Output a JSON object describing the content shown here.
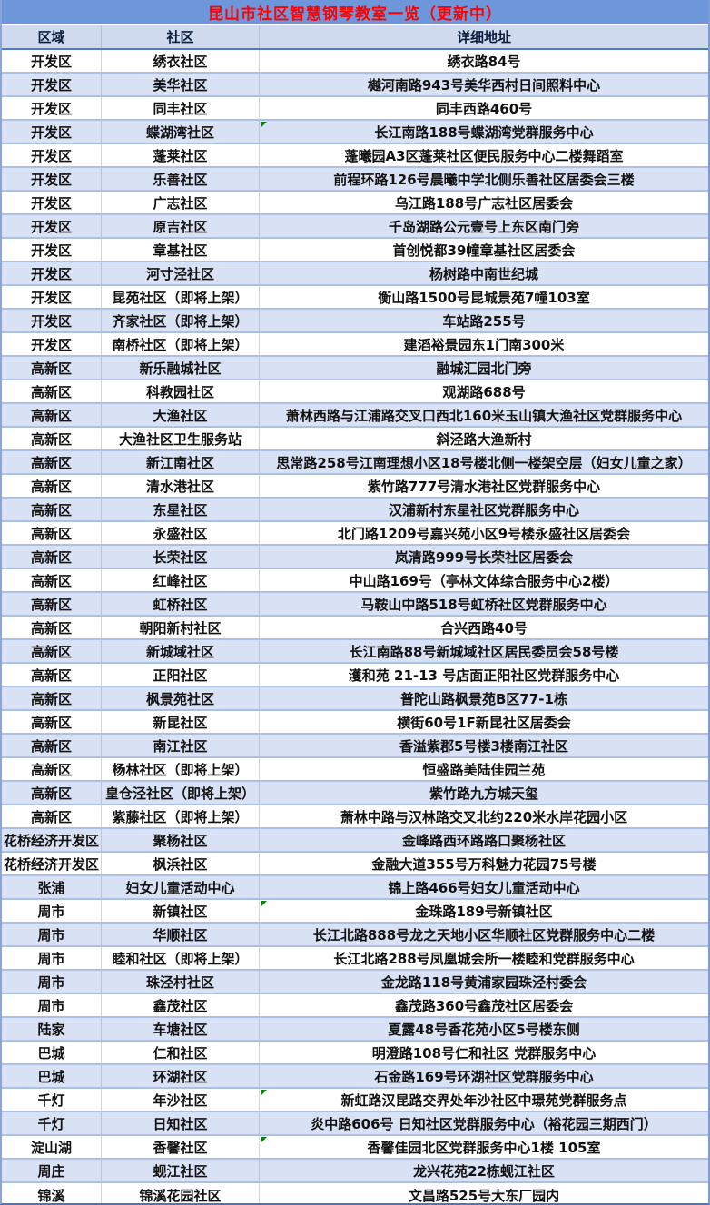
{
  "title": "昆山市社区智慧钢琴教室一览（更新中）",
  "columns": [
    "区域",
    "社区",
    "详细地址"
  ],
  "colors": {
    "title_bg": "#6d97da",
    "title_text": "#ff0000",
    "header_bg": "#cfdaef",
    "row_bg": "#ffffff",
    "row_alt_bg": "#d9e2f4",
    "row_border": "#adbfe5",
    "header_border": "#4e79c9",
    "comment_triangle": "#0f7e0f"
  },
  "rows": [
    {
      "region": "开发区",
      "community": "绣衣社区",
      "address": "绣衣路84号",
      "comment_marker": false
    },
    {
      "region": "开发区",
      "community": "美华社区",
      "address": "樾河南路943号美华西村日间照料中心",
      "comment_marker": false
    },
    {
      "region": "开发区",
      "community": "同丰社区",
      "address": "同丰西路460号",
      "comment_marker": false
    },
    {
      "region": "开发区",
      "community": "蝶湖湾社区",
      "address": "长江南路188号蝶湖湾党群服务中心",
      "comment_marker": true
    },
    {
      "region": "开发区",
      "community": "蓬莱社区",
      "address": "蓬曦园A3区蓬莱社区便民服务中心二楼舞蹈室",
      "comment_marker": false
    },
    {
      "region": "开发区",
      "community": "乐善社区",
      "address": "前程环路126号晨曦中学北侧乐善社区居委会三楼",
      "comment_marker": false
    },
    {
      "region": "开发区",
      "community": "广志社区",
      "address": "乌江路188号广志社区居委会",
      "comment_marker": false
    },
    {
      "region": "开发区",
      "community": "原吉社区",
      "address": "千岛湖路公元壹号上东区南门旁",
      "comment_marker": false
    },
    {
      "region": "开发区",
      "community": "章基社区",
      "address": "首创悦都39幢章基社区居委会",
      "comment_marker": false
    },
    {
      "region": "开发区",
      "community": "河寸泾社区",
      "address": "杨树路中南世纪城",
      "comment_marker": false
    },
    {
      "region": "开发区",
      "community": "昆苑社区（即将上架）",
      "address": "衡山路1500号昆城景苑7幢103室",
      "comment_marker": false
    },
    {
      "region": "开发区",
      "community": "齐家社区（即将上架）",
      "address": "车站路255号",
      "comment_marker": false
    },
    {
      "region": "开发区",
      "community": "南桥社区（即将上架）",
      "address": "建滔裕景园东1门南300米",
      "comment_marker": false
    },
    {
      "region": "高新区",
      "community": "新乐融城社区",
      "address": "融城汇园北门旁",
      "comment_marker": false
    },
    {
      "region": "高新区",
      "community": "科教园社区",
      "address": "观湖路688号",
      "comment_marker": false
    },
    {
      "region": "高新区",
      "community": "大渔社区",
      "address": "萧林西路与江浦路交叉口西北160米玉山镇大渔社区党群服务中心",
      "comment_marker": false
    },
    {
      "region": "高新区",
      "community": "大渔社区卫生服务站",
      "address": "斜泾路大渔新村",
      "comment_marker": false
    },
    {
      "region": "高新区",
      "community": "新江南社区",
      "address": "思常路258号江南理想小区18号楼北侧一楼架空层（妇女儿童之家）",
      "comment_marker": false
    },
    {
      "region": "高新区",
      "community": "清水港社区",
      "address": "紫竹路777号清水港社区党群服务中心",
      "comment_marker": false
    },
    {
      "region": "高新区",
      "community": "东星社区",
      "address": "汉浦新村东星社区党群服务中心",
      "comment_marker": false
    },
    {
      "region": "高新区",
      "community": "永盛社区",
      "address": "北门路1209号嘉兴苑小区9号楼永盛社区居委会",
      "comment_marker": false
    },
    {
      "region": "高新区",
      "community": "长荣社区",
      "address": "岚清路999号长荣社区居委会",
      "comment_marker": false
    },
    {
      "region": "高新区",
      "community": "红峰社区",
      "address": "中山路169号（亭林文体综合服务中心2楼）",
      "comment_marker": false
    },
    {
      "region": "高新区",
      "community": "虹桥社区",
      "address": "马鞍山中路518号虹桥社区党群服务中心",
      "comment_marker": false
    },
    {
      "region": "高新区",
      "community": "朝阳新村社区",
      "address": "合兴西路40号",
      "comment_marker": false
    },
    {
      "region": "高新区",
      "community": "新城域社区",
      "address": "长江南路88号新城域社区居民委员会58号楼",
      "comment_marker": false
    },
    {
      "region": "高新区",
      "community": "正阳社区",
      "address": "濩和苑 21-13 号店面正阳社区党群服务中心",
      "comment_marker": false
    },
    {
      "region": "高新区",
      "community": "枫景苑社区",
      "address": "普陀山路枫景苑B区77-1栋",
      "comment_marker": false
    },
    {
      "region": "高新区",
      "community": "新昆社区",
      "address": "横街60号1F新昆社区居委会",
      "comment_marker": false
    },
    {
      "region": "高新区",
      "community": "南江社区",
      "address": "香溢紫郡5号楼3楼南江社区",
      "comment_marker": false
    },
    {
      "region": "高新区",
      "community": "杨林社区（即将上架）",
      "address": "恒盛路美陆佳园兰苑",
      "comment_marker": false
    },
    {
      "region": "高新区",
      "community": "皇仓泾社区（即将上架）",
      "address": "紫竹路九方城天玺",
      "comment_marker": false
    },
    {
      "region": "高新区",
      "community": "紫藤社区（即将上架）",
      "address": "萧林中路与汉林路交叉北约220米水岸花园小区",
      "comment_marker": false
    },
    {
      "region": "花桥经济开发区",
      "community": "聚杨社区",
      "address": "金峰路西环路路口聚杨社区",
      "comment_marker": false
    },
    {
      "region": "花桥经济开发区",
      "community": "枫浜社区",
      "address": "金融大道355号万科魅力花园75号楼",
      "comment_marker": false
    },
    {
      "region": "张浦",
      "community": "妇女儿童活动中心",
      "address": "锦上路466号妇女儿童活动中心",
      "comment_marker": false
    },
    {
      "region": "周市",
      "community": "新镇社区",
      "address": "金珠路189号新镇社区",
      "comment_marker": true
    },
    {
      "region": "周市",
      "community": "华顺社区",
      "address": "长江北路888号龙之天地小区华顺社区党群服务中心二楼",
      "comment_marker": false
    },
    {
      "region": "周市",
      "community": "睦和社区（即将上架）",
      "address": "长江北路288号凤凰城会所一楼睦和党群服务中心",
      "comment_marker": false
    },
    {
      "region": "周市",
      "community": "珠泾村社区",
      "address": "金龙路118号黄浦家园珠泾村委会",
      "comment_marker": false
    },
    {
      "region": "周市",
      "community": "鑫茂社区",
      "address": "鑫茂路360号鑫茂社区居委会",
      "comment_marker": false
    },
    {
      "region": "陆家",
      "community": "车塘社区",
      "address": "夏露48号香花苑小区5号楼东侧",
      "comment_marker": false
    },
    {
      "region": "巴城",
      "community": "仁和社区",
      "address": "明澄路108号仁和社区 党群服务中心",
      "comment_marker": false
    },
    {
      "region": "巴城",
      "community": "环湖社区",
      "address": "石金路169号环湖社区党群服务中心",
      "comment_marker": false
    },
    {
      "region": "千灯",
      "community": "年沙社区",
      "address": "新虹路汉昆路交界处年沙社区中璟苑党群服务点",
      "comment_marker": true
    },
    {
      "region": "千灯",
      "community": "日知社区",
      "address": "炎中路606号 日知社区党群服务中心（裕花园三期西门）",
      "comment_marker": false
    },
    {
      "region": "淀山湖",
      "community": "香馨社区",
      "address": "香馨佳园北区党群服务中心1楼 105室",
      "comment_marker": true
    },
    {
      "region": "周庄",
      "community": "蚬江社区",
      "address": "龙兴花苑22栋蚬江社区",
      "comment_marker": false
    },
    {
      "region": "锦溪",
      "community": "锦溪花园社区",
      "address": "文昌路525号大东厂园内",
      "comment_marker": false
    }
  ]
}
